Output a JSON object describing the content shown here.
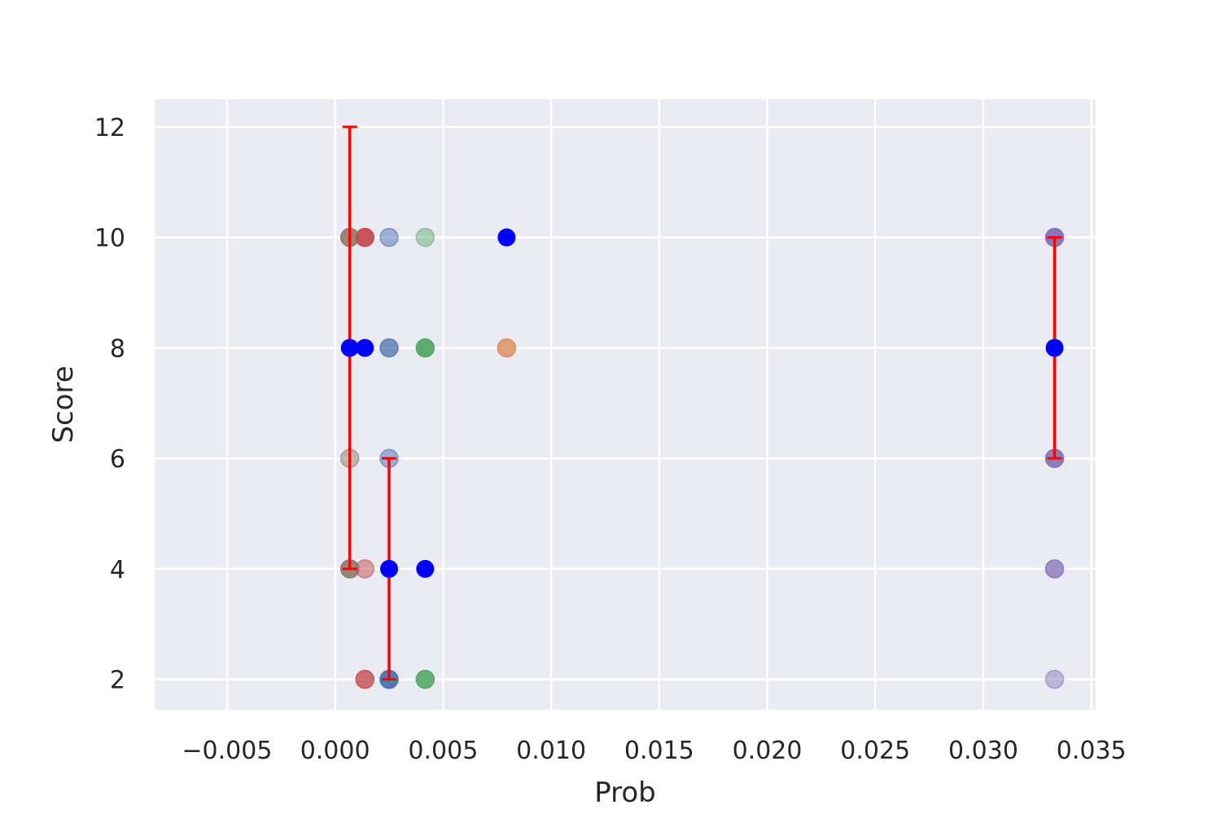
{
  "chart_data": {
    "type": "scatter",
    "title": "",
    "xlabel": "Prob",
    "ylabel": "Score",
    "xlim": [
      -0.00835,
      0.0352
    ],
    "ylim": [
      1.45,
      12.5
    ],
    "grid": true,
    "x_ticks": [
      {
        "value": -0.005,
        "label": "−0.005"
      },
      {
        "value": 0.0,
        "label": "0.000"
      },
      {
        "value": 0.005,
        "label": "0.005"
      },
      {
        "value": 0.01,
        "label": "0.010"
      },
      {
        "value": 0.015,
        "label": "0.015"
      },
      {
        "value": 0.02,
        "label": "0.020"
      },
      {
        "value": 0.025,
        "label": "0.025"
      },
      {
        "value": 0.03,
        "label": "0.030"
      },
      {
        "value": 0.035,
        "label": "0.035"
      }
    ],
    "y_ticks": [
      {
        "value": 2,
        "label": "2"
      },
      {
        "value": 4,
        "label": "4"
      },
      {
        "value": 6,
        "label": "6"
      },
      {
        "value": 8,
        "label": "8"
      },
      {
        "value": 10,
        "label": "10"
      },
      {
        "value": 12,
        "label": "12"
      }
    ],
    "series": [
      {
        "color": "#8c7b6a",
        "points": [
          {
            "x": 0.00068,
            "y": 10,
            "alpha": 0.9
          },
          {
            "x": 0.00068,
            "y": 6,
            "alpha": 0.5
          },
          {
            "x": 0.00068,
            "y": 4,
            "alpha": 0.9
          }
        ]
      },
      {
        "color": "#c44e52",
        "points": [
          {
            "x": 0.00138,
            "y": 10,
            "alpha": 0.95
          },
          {
            "x": 0.00138,
            "y": 4,
            "alpha": 0.5
          },
          {
            "x": 0.00138,
            "y": 2,
            "alpha": 0.8
          }
        ]
      },
      {
        "color": "#4c72b0",
        "points": [
          {
            "x": 0.0025,
            "y": 10,
            "alpha": 0.5
          },
          {
            "x": 0.0025,
            "y": 8,
            "alpha": 0.75
          },
          {
            "x": 0.0025,
            "y": 6,
            "alpha": 0.5
          },
          {
            "x": 0.0025,
            "y": 2,
            "alpha": 0.95
          }
        ]
      },
      {
        "color": "#55a868",
        "points": [
          {
            "x": 0.00417,
            "y": 10,
            "alpha": 0.45
          },
          {
            "x": 0.00417,
            "y": 8,
            "alpha": 0.95
          },
          {
            "x": 0.00417,
            "y": 2,
            "alpha": 0.9
          }
        ]
      },
      {
        "color": "#dd8452",
        "points": [
          {
            "x": 0.00794,
            "y": 8,
            "alpha": 0.75
          }
        ]
      },
      {
        "color": "#8172b3",
        "points": [
          {
            "x": 0.0333,
            "y": 10,
            "alpha": 0.95
          },
          {
            "x": 0.0333,
            "y": 6,
            "alpha": 0.9
          },
          {
            "x": 0.0333,
            "y": 4,
            "alpha": 0.75
          },
          {
            "x": 0.0333,
            "y": 2,
            "alpha": 0.45
          }
        ]
      }
    ],
    "mean_points": {
      "color": "#0000ff",
      "points": [
        {
          "x": 0.00068,
          "y": 8
        },
        {
          "x": 0.00138,
          "y": 8
        },
        {
          "x": 0.0025,
          "y": 4
        },
        {
          "x": 0.00417,
          "y": 4
        },
        {
          "x": 0.00794,
          "y": 10
        },
        {
          "x": 0.0333,
          "y": 8
        }
      ]
    },
    "error_bars": {
      "color": "#ff0000",
      "bars": [
        {
          "x": 0.00068,
          "low": 4,
          "high": 12
        },
        {
          "x": 0.0025,
          "low": 2,
          "high": 6
        },
        {
          "x": 0.0333,
          "low": 6,
          "high": 10
        }
      ]
    },
    "colors": {
      "background": "#eaeaf2",
      "grid": "#ffffff",
      "text": "#262626"
    }
  }
}
